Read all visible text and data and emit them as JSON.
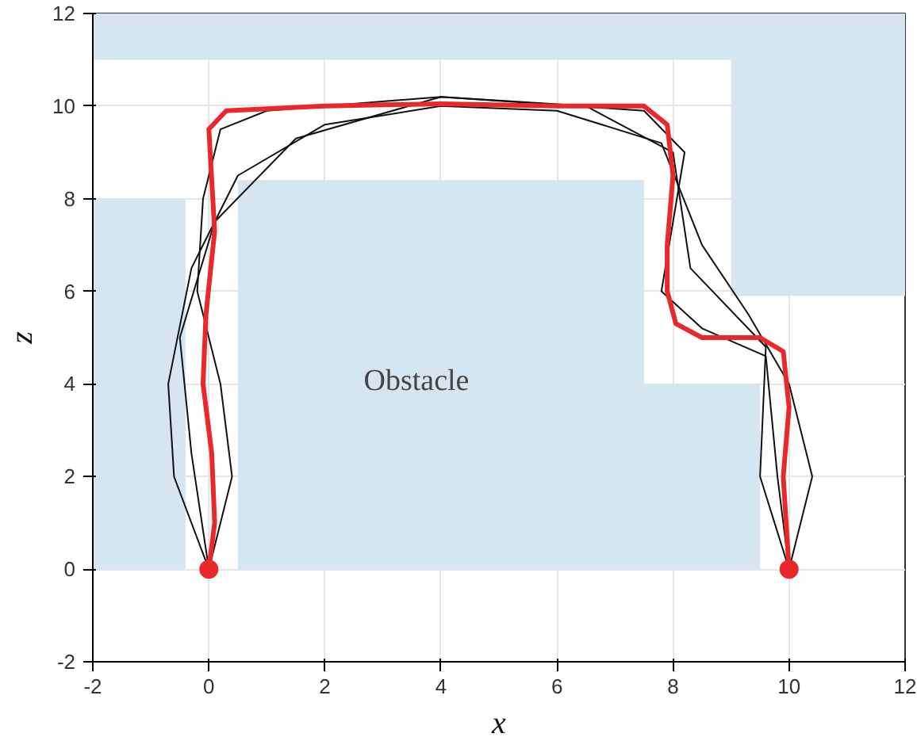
{
  "chart_data": {
    "type": "line",
    "xlabel": "x",
    "ylabel": "z",
    "xlim": [
      -2,
      12
    ],
    "ylim": [
      -2,
      12
    ],
    "xticks": [
      -2,
      0,
      2,
      4,
      6,
      8,
      10,
      12
    ],
    "yticks": [
      -2,
      0,
      2,
      4,
      6,
      8,
      10,
      12
    ],
    "grid": true,
    "marker": "none",
    "line_style": "solid",
    "annotations": [
      "Obstacle"
    ],
    "series": [
      {
        "type": "area",
        "color": "#d6e6f1",
        "x": [
          -2,
          -0.4,
          -0.4,
          -2
        ],
        "values": [
          0,
          0,
          8,
          8
        ]
      },
      {
        "type": "area",
        "color": "#d6e6f1",
        "x": [
          0.5,
          9.5,
          9.5,
          7.5,
          7.5,
          0.5
        ],
        "values": [
          0,
          0,
          4,
          4,
          8.4,
          8.4
        ]
      },
      {
        "type": "area",
        "color": "#d6e6f1",
        "x": [
          -2,
          12,
          12,
          9,
          9,
          -2
        ],
        "values": [
          12,
          12,
          5.9,
          5.9,
          11,
          11
        ]
      },
      {
        "color": "#111111",
        "x": [
          0,
          -0.6,
          -0.7,
          -0.3,
          0.5,
          2,
          4,
          6,
          7.8,
          8.5,
          9.3,
          10,
          10.4,
          10
        ],
        "values": [
          0,
          2,
          4,
          6.5,
          8.5,
          9.6,
          10,
          9.9,
          9.2,
          7,
          5.5,
          4,
          2,
          0
        ]
      },
      {
        "color": "#111111",
        "x": [
          0,
          0.4,
          0.2,
          -0.2,
          -0.1,
          0.2,
          1,
          4,
          7.5,
          8.2,
          8,
          7.8,
          8.5,
          9.6,
          9.8,
          10
        ],
        "values": [
          0,
          2,
          4,
          6,
          8,
          9.5,
          9.9,
          10.2,
          9.9,
          9,
          7.5,
          6,
          5.2,
          4.6,
          2,
          0
        ]
      },
      {
        "color": "#111111",
        "x": [
          0,
          -0.3,
          -0.5,
          0.1,
          1.5,
          4,
          6.5,
          8,
          8.3,
          9.6,
          9.5,
          10
        ],
        "values": [
          0,
          2.5,
          5,
          7.5,
          9.3,
          10.2,
          10,
          9,
          6.5,
          4.8,
          2,
          0
        ]
      },
      {
        "color": "#e8282b",
        "x": [
          0,
          0.1,
          0.05,
          -0.1,
          -0.05,
          0.1,
          0,
          0.3,
          2,
          4,
          6,
          7.5,
          7.9,
          8,
          7.9,
          7.9,
          8.05,
          8.5,
          9.5,
          9.9,
          10,
          9.9,
          10
        ],
        "values": [
          0,
          1,
          2.5,
          4,
          5.5,
          7.3,
          9.5,
          9.9,
          10,
          10.05,
          10,
          10,
          9.6,
          8.5,
          7,
          6,
          5.3,
          5,
          5,
          4.7,
          3.5,
          2,
          0
        ]
      },
      {
        "type": "scatter",
        "marker": "circle",
        "color": "#e8282b",
        "x": [
          0,
          10
        ],
        "values": [
          0,
          0
        ]
      }
    ]
  }
}
